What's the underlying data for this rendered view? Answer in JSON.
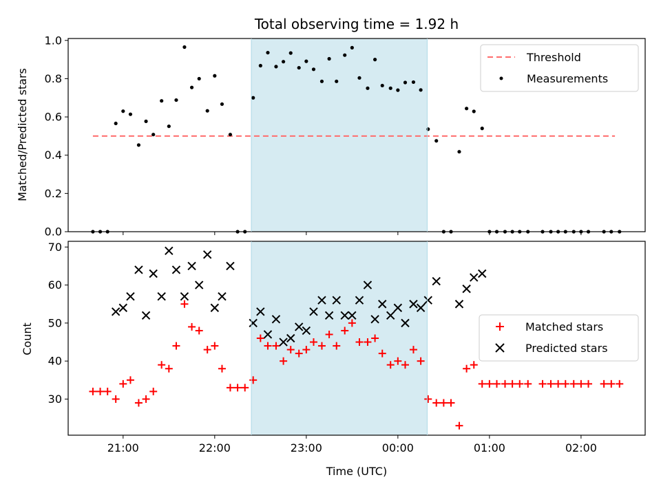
{
  "chart_data": [
    {
      "type": "scatter",
      "title": "Total observing time = 1.92 h",
      "ylabel": "Matched/Predicted stars",
      "xlabel": "",
      "xlim": [
        20.4,
        26.7
      ],
      "ylim": [
        0.0,
        1.01
      ],
      "y_ticks": [
        0.0,
        0.2,
        0.4,
        0.6,
        0.8,
        1.0
      ],
      "y_tick_labels": [
        "0.0",
        "0.2",
        "0.4",
        "0.6",
        "0.8",
        "1.0"
      ],
      "x_ticks": [
        21,
        22,
        23,
        24,
        25,
        26
      ],
      "shaded_span": {
        "x_start": 22.4,
        "x_end": 24.32,
        "color": "#add8e6"
      },
      "threshold": {
        "name": "Threshold",
        "y": 0.5,
        "x_start": 20.67,
        "x_end": 26.37,
        "color": "#ff6b6b"
      },
      "legend": {
        "position": "upper right",
        "entries": [
          {
            "label": "Threshold",
            "marker": "dashed-line",
            "color": "#ff6b6b"
          },
          {
            "label": "Measurements",
            "marker": "dot",
            "color": "#000000"
          }
        ]
      },
      "series": [
        {
          "name": "Measurements",
          "color": "#000000",
          "x": [
            20.67,
            20.75,
            20.83,
            20.92,
            21.0,
            21.08,
            21.17,
            21.25,
            21.33,
            21.42,
            21.5,
            21.58,
            21.67,
            21.75,
            21.83,
            21.92,
            22.0,
            22.08,
            22.17,
            22.25,
            22.33,
            22.42,
            22.5,
            22.58,
            22.67,
            22.75,
            22.83,
            22.92,
            23.0,
            23.08,
            23.17,
            23.25,
            23.33,
            23.42,
            23.5,
            23.58,
            23.67,
            23.75,
            23.83,
            23.92,
            24.0,
            24.08,
            24.17,
            24.25,
            24.33,
            24.42,
            24.5,
            24.58,
            24.67,
            24.75,
            24.83,
            24.92,
            25.0,
            25.08,
            25.17,
            25.25,
            25.33,
            25.42,
            25.58,
            25.67,
            25.75,
            25.83,
            25.92,
            26.0,
            26.08,
            26.25,
            26.33,
            26.42
          ],
          "y": [
            0.0,
            0.0,
            0.0,
            0.566,
            0.63,
            0.614,
            0.453,
            0.577,
            0.508,
            0.684,
            0.551,
            0.688,
            0.965,
            0.754,
            0.8,
            0.632,
            0.815,
            0.667,
            0.508,
            0.0,
            0.0,
            0.7,
            0.868,
            0.936,
            0.863,
            0.889,
            0.934,
            0.857,
            0.891,
            0.849,
            0.786,
            0.904,
            0.786,
            0.923,
            0.962,
            0.804,
            0.75,
            0.9,
            0.764,
            0.75,
            0.74,
            0.78,
            0.782,
            0.741,
            0.536,
            0.475,
            0.0,
            0.0,
            0.418,
            0.644,
            0.629,
            0.54,
            0.0,
            0.0,
            0.0,
            0.0,
            0.0,
            0.0,
            0.0,
            0.0,
            0.0,
            0.0,
            0.0,
            0.0,
            0.0,
            0.0,
            0.0,
            0.0
          ]
        }
      ]
    },
    {
      "type": "scatter",
      "title": "",
      "ylabel": "Count",
      "xlabel": "Time (UTC)",
      "xlim": [
        20.4,
        26.7
      ],
      "ylim": [
        20.5,
        71.5
      ],
      "y_ticks": [
        30,
        40,
        50,
        60,
        70
      ],
      "y_tick_labels": [
        "30",
        "40",
        "50",
        "60",
        "70"
      ],
      "x_ticks": [
        21,
        22,
        23,
        24,
        25,
        26
      ],
      "x_tick_labels": [
        "21:00",
        "22:00",
        "23:00",
        "00:00",
        "01:00",
        "02:00"
      ],
      "shaded_span": {
        "x_start": 22.4,
        "x_end": 24.32,
        "color": "#add8e6"
      },
      "legend": {
        "position": "center right",
        "entries": [
          {
            "label": "Matched stars",
            "marker": "plus",
            "color": "#ff0000"
          },
          {
            "label": "Predicted stars",
            "marker": "x",
            "color": "#000000"
          }
        ]
      },
      "series": [
        {
          "name": "Matched stars",
          "marker": "plus",
          "color": "#ff0000",
          "x": [
            20.67,
            20.75,
            20.83,
            20.92,
            21.0,
            21.08,
            21.17,
            21.25,
            21.33,
            21.42,
            21.5,
            21.58,
            21.67,
            21.75,
            21.83,
            21.92,
            22.0,
            22.08,
            22.17,
            22.25,
            22.33,
            22.42,
            22.5,
            22.58,
            22.67,
            22.75,
            22.83,
            22.92,
            23.0,
            23.08,
            23.17,
            23.25,
            23.33,
            23.42,
            23.5,
            23.58,
            23.67,
            23.75,
            23.83,
            23.92,
            24.0,
            24.08,
            24.17,
            24.25,
            24.33,
            24.42,
            24.5,
            24.58,
            24.67,
            24.75,
            24.83,
            24.92,
            25.0,
            25.08,
            25.17,
            25.25,
            25.33,
            25.42,
            25.58,
            25.67,
            25.75,
            25.83,
            25.92,
            26.0,
            26.08,
            26.25,
            26.33,
            26.42
          ],
          "y": [
            32,
            32,
            32,
            30,
            34,
            35,
            29,
            30,
            32,
            39,
            38,
            44,
            55,
            49,
            48,
            43,
            44,
            38,
            33,
            33,
            33,
            35,
            46,
            44,
            44,
            40,
            43,
            42,
            43,
            45,
            44,
            47,
            44,
            48,
            50,
            45,
            45,
            46,
            42,
            39,
            40,
            39,
            43,
            40,
            30,
            29,
            29,
            29,
            23,
            38,
            39,
            34,
            34,
            34,
            34,
            34,
            34,
            34,
            34,
            34,
            34,
            34,
            34,
            34,
            34,
            34,
            34,
            34
          ]
        },
        {
          "name": "Predicted stars",
          "marker": "x",
          "color": "#000000",
          "x": [
            20.92,
            21.0,
            21.08,
            21.17,
            21.25,
            21.33,
            21.42,
            21.5,
            21.58,
            21.67,
            21.75,
            21.83,
            21.92,
            22.0,
            22.08,
            22.17,
            22.42,
            22.5,
            22.58,
            22.67,
            22.75,
            22.83,
            22.92,
            23.0,
            23.08,
            23.17,
            23.25,
            23.33,
            23.42,
            23.5,
            23.58,
            23.67,
            23.75,
            23.83,
            23.92,
            24.0,
            24.08,
            24.17,
            24.25,
            24.33,
            24.42,
            24.67,
            24.75,
            24.83,
            24.92
          ],
          "y": [
            53,
            54,
            57,
            64,
            52,
            63,
            57,
            69,
            64,
            57,
            65,
            60,
            68,
            54,
            57,
            65,
            50,
            53,
            47,
            51,
            45,
            46,
            49,
            48,
            53,
            56,
            52,
            56,
            52,
            52,
            56,
            60,
            51,
            55,
            52,
            54,
            50,
            55,
            54,
            56,
            61,
            55,
            59,
            62,
            63
          ]
        }
      ]
    }
  ]
}
